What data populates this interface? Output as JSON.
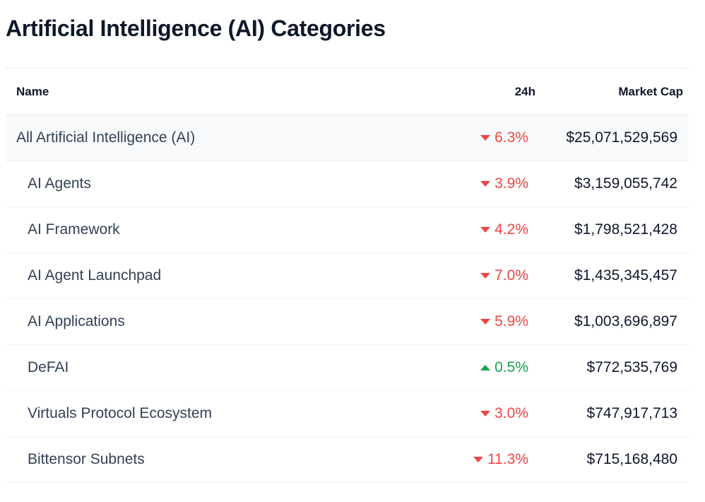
{
  "page": {
    "title": "Artificial Intelligence (AI) Categories"
  },
  "table": {
    "headers": {
      "name": "Name",
      "change_24h": "24h",
      "market_cap": "Market Cap"
    },
    "rows": [
      {
        "name": "All Artificial Intelligence (AI)",
        "change": "6.3%",
        "direction": "down",
        "market_cap": "$25,071,529,569"
      },
      {
        "name": "AI Agents",
        "change": "3.9%",
        "direction": "down",
        "market_cap": "$3,159,055,742"
      },
      {
        "name": "AI Framework",
        "change": "4.2%",
        "direction": "down",
        "market_cap": "$1,798,521,428"
      },
      {
        "name": "AI Agent Launchpad",
        "change": "7.0%",
        "direction": "down",
        "market_cap": "$1,435,345,457"
      },
      {
        "name": "AI Applications",
        "change": "5.9%",
        "direction": "down",
        "market_cap": "$1,003,696,897"
      },
      {
        "name": "DeFAI",
        "change": "0.5%",
        "direction": "up",
        "market_cap": "$772,535,769"
      },
      {
        "name": "Virtuals Protocol Ecosystem",
        "change": "3.0%",
        "direction": "down",
        "market_cap": "$747,917,713"
      },
      {
        "name": "Bittensor Subnets",
        "change": "11.3%",
        "direction": "down",
        "market_cap": "$715,168,480"
      }
    ]
  },
  "colors": {
    "down": "#ef4444",
    "up": "#16a34a",
    "parent_row_bg": "#f8fafc"
  }
}
